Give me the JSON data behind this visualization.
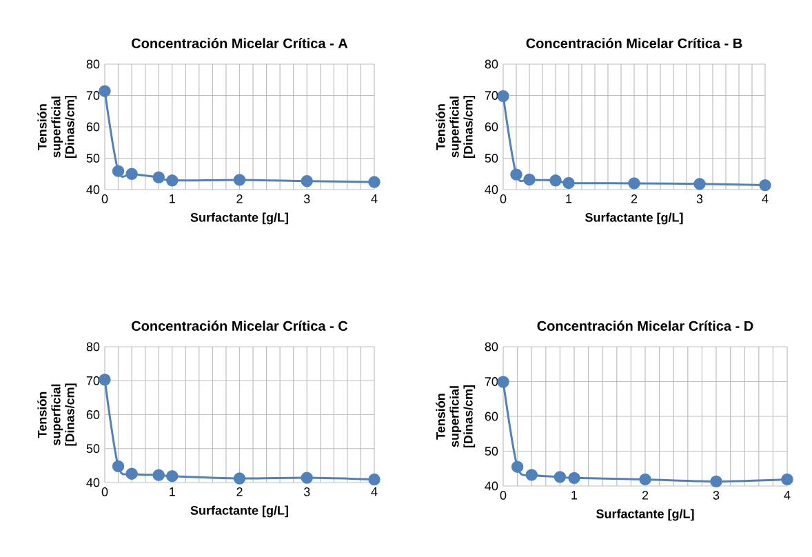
{
  "chart_data": [
    {
      "type": "line",
      "title": "Concentración Micelar Crítica - A",
      "xlabel": "Surfactante [g/L]",
      "ylabel": "Tensión superficial [Dinas/cm]",
      "x": [
        0,
        0.2,
        0.4,
        0.8,
        1,
        2,
        3,
        4
      ],
      "values": [
        71.4,
        45.9,
        45.0,
        43.9,
        42.9,
        43.1,
        42.7,
        42.4
      ],
      "color": "#4f81bd",
      "marker": "circle",
      "grid": true,
      "xlim": [
        0,
        4
      ],
      "ylim": [
        40,
        80
      ],
      "xticks": [
        0,
        {
          "value": 0.2,
          "label": null
        },
        {
          "value": 0.4,
          "label": null
        },
        {
          "value": 0.6,
          "label": null
        },
        {
          "value": 0.8,
          "label": null
        },
        1,
        {
          "value": 1.2,
          "label": null
        },
        {
          "value": 1.4,
          "label": null
        },
        {
          "value": 1.6,
          "label": null
        },
        {
          "value": 1.8,
          "label": null
        },
        2,
        {
          "value": 2.2,
          "label": null
        },
        {
          "value": 2.4,
          "label": null
        },
        {
          "value": 2.6,
          "label": null
        },
        {
          "value": 2.8,
          "label": null
        },
        3,
        {
          "value": 3.2,
          "label": null
        },
        {
          "value": 3.4,
          "label": null
        },
        {
          "value": 3.6,
          "label": null
        },
        {
          "value": 3.8,
          "label": null
        },
        4
      ],
      "yticks": [
        40,
        50,
        60,
        70,
        80
      ]
    },
    {
      "type": "line",
      "title": "Concentración Micelar Crítica - B",
      "xlabel": "Surfactante [g/L]",
      "ylabel": "Tensión superficial [Dinas/cm]",
      "x": [
        0,
        0.2,
        0.4,
        0.8,
        1,
        2,
        3,
        4
      ],
      "values": [
        69.8,
        44.8,
        43.2,
        42.9,
        42.1,
        42.0,
        41.8,
        41.4
      ],
      "color": "#4f81bd",
      "marker": "circle",
      "grid": true,
      "xlim": [
        0,
        4
      ],
      "ylim": [
        40,
        80
      ],
      "xticks": [
        0,
        {
          "value": 0.2,
          "label": null
        },
        {
          "value": 0.4,
          "label": null
        },
        {
          "value": 0.6,
          "label": null
        },
        {
          "value": 0.8,
          "label": null
        },
        1,
        {
          "value": 1.2,
          "label": null
        },
        {
          "value": 1.4,
          "label": null
        },
        {
          "value": 1.6,
          "label": null
        },
        {
          "value": 1.8,
          "label": null
        },
        2,
        {
          "value": 2.2,
          "label": null
        },
        {
          "value": 2.4,
          "label": null
        },
        {
          "value": 2.6,
          "label": null
        },
        {
          "value": 2.8,
          "label": null
        },
        3,
        {
          "value": 3.2,
          "label": null
        },
        {
          "value": 3.4,
          "label": null
        },
        {
          "value": 3.6,
          "label": null
        },
        {
          "value": 3.8,
          "label": null
        },
        4
      ],
      "yticks": [
        40,
        50,
        60,
        70,
        80
      ]
    },
    {
      "type": "line",
      "title": "Concentración Micelar Crítica - C",
      "xlabel": "Surfactante [g/L]",
      "ylabel": "Tensión superficial [Dinas/cm]",
      "x": [
        0,
        0.2,
        0.4,
        0.8,
        1,
        2,
        3,
        4
      ],
      "values": [
        70.3,
        44.8,
        42.6,
        42.2,
        41.9,
        41.2,
        41.4,
        40.9
      ],
      "color": "#4f81bd",
      "marker": "circle",
      "grid": true,
      "xlim": [
        0,
        4
      ],
      "ylim": [
        40,
        80
      ],
      "xticks": [
        0,
        {
          "value": 0.2,
          "label": null
        },
        {
          "value": 0.4,
          "label": null
        },
        {
          "value": 0.6,
          "label": null
        },
        {
          "value": 0.8,
          "label": null
        },
        1,
        {
          "value": 1.2,
          "label": null
        },
        {
          "value": 1.4,
          "label": null
        },
        {
          "value": 1.6,
          "label": null
        },
        {
          "value": 1.8,
          "label": null
        },
        2,
        {
          "value": 2.2,
          "label": null
        },
        {
          "value": 2.4,
          "label": null
        },
        {
          "value": 2.6,
          "label": null
        },
        {
          "value": 2.8,
          "label": null
        },
        3,
        {
          "value": 3.2,
          "label": null
        },
        {
          "value": 3.4,
          "label": null
        },
        {
          "value": 3.6,
          "label": null
        },
        {
          "value": 3.8,
          "label": null
        },
        4
      ],
      "yticks": [
        40,
        50,
        60,
        70,
        80
      ]
    },
    {
      "type": "line",
      "title": "Concentración Micelar Crítica - D",
      "xlabel": "Surfactante [g/L]",
      "ylabel": "Tensión superficial [Dinas/cm]",
      "x": [
        0,
        0.2,
        0.4,
        0.8,
        1,
        2,
        3,
        4
      ],
      "values": [
        69.9,
        45.5,
        43.2,
        42.6,
        42.3,
        41.9,
        41.3,
        41.9
      ],
      "color": "#4f81bd",
      "marker": "circle",
      "grid": true,
      "xlim": [
        0,
        4
      ],
      "ylim": [
        40,
        80
      ],
      "xticks": [
        0,
        {
          "value": 0.2,
          "label": null
        },
        {
          "value": 0.4,
          "label": null
        },
        {
          "value": 0.6,
          "label": null
        },
        {
          "value": 0.8,
          "label": null
        },
        1,
        {
          "value": 1.2,
          "label": null
        },
        {
          "value": 1.4,
          "label": null
        },
        {
          "value": 1.6,
          "label": null
        },
        {
          "value": 1.8,
          "label": null
        },
        2,
        {
          "value": 2.2,
          "label": null
        },
        {
          "value": 2.4,
          "label": null
        },
        {
          "value": 2.6,
          "label": null
        },
        {
          "value": 2.8,
          "label": null
        },
        3,
        {
          "value": 3.2,
          "label": null
        },
        {
          "value": 3.4,
          "label": null
        },
        {
          "value": 3.6,
          "label": null
        },
        {
          "value": 3.8,
          "label": null
        },
        4
      ],
      "yticks": [
        40,
        50,
        60,
        70,
        80
      ]
    }
  ]
}
